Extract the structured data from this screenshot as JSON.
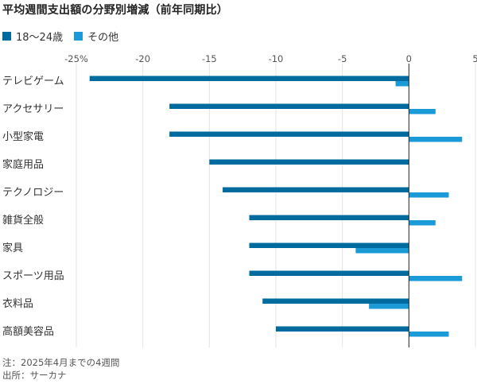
{
  "chart_data": {
    "type": "bar",
    "orientation": "horizontal",
    "title": "平均週間支出額の分野別増減（前年同期比）",
    "categories": [
      "テレビゲーム",
      "アクセサリー",
      "小型家電",
      "家庭用品",
      "テクノロジー",
      "雑貨全般",
      "家具",
      "スポーツ用品",
      "衣料品",
      "高額美容品"
    ],
    "series": [
      {
        "name": "18〜24歳",
        "color": "#006b9e",
        "values": [
          -24,
          -18,
          -18,
          -15,
          -14,
          -12,
          -12,
          -12,
          -11,
          -10
        ]
      },
      {
        "name": "その他",
        "color": "#1a9ad6",
        "values": [
          -1,
          2,
          4,
          0,
          3,
          2,
          -4,
          4,
          -3,
          3
        ]
      }
    ],
    "xlim": [
      -25,
      5
    ],
    "xticks": [
      {
        "value": -25,
        "label": "-25%"
      },
      {
        "value": -20,
        "label": "-20"
      },
      {
        "value": -15,
        "label": "-15"
      },
      {
        "value": -10,
        "label": "-10"
      },
      {
        "value": -5,
        "label": "-5"
      },
      {
        "value": 0,
        "label": "0"
      },
      {
        "value": 5,
        "label": "5"
      }
    ],
    "grid": true,
    "legend_position": "top-left"
  },
  "notes": {
    "note": "注：2025年4月までの4週間",
    "source": "出所：サーカナ"
  }
}
